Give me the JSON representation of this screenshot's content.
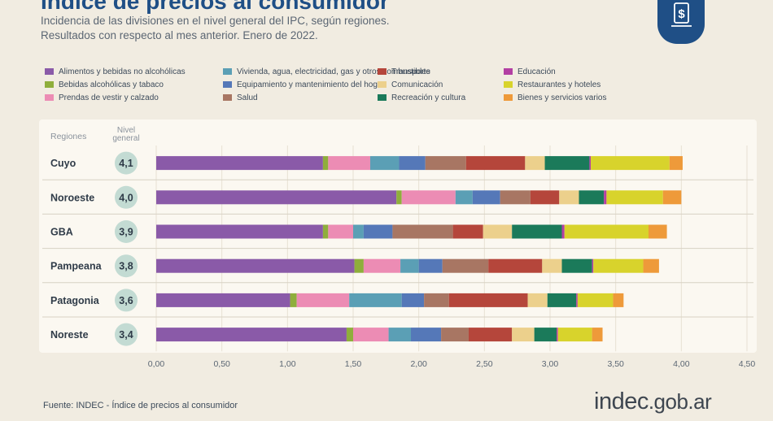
{
  "header": {
    "title": "Índice de precios al consumidor",
    "subtitle_line1": "Incidencia de las divisiones en el nivel general del IPC, según regiones.",
    "subtitle_line2": "Resultados con respecto al mes anterior. Enero de 2022.",
    "logo_icon": "dollar-document-icon"
  },
  "footer": {
    "source": "Fuente: INDEC - Índice de precios al consumidor",
    "brand_main": "indec",
    "brand_suffix": ".gob.ar"
  },
  "chart_data": {
    "type": "bar",
    "orientation": "horizontal",
    "stacked": true,
    "title": "Índice de precios al consumidor",
    "row_header_label": "Regiones",
    "total_header_label": "Nivel general",
    "categories": [
      "Cuyo",
      "Noroeste",
      "GBA",
      "Pampeana",
      "Patagonia",
      "Noreste"
    ],
    "totals": [
      "4,1",
      "4,0",
      "3,9",
      "3,8",
      "3,6",
      "3,4"
    ],
    "xlim": [
      0,
      4.5
    ],
    "xticks": [
      0,
      0.5,
      1.0,
      1.5,
      2.0,
      2.5,
      3.0,
      3.5,
      4.0,
      4.5
    ],
    "xtick_labels": [
      "0,00",
      "0,50",
      "1,00",
      "1,50",
      "2,00",
      "2,50",
      "3,00",
      "3,50",
      "4,00",
      "4,50"
    ],
    "legend_position": "top",
    "series": [
      {
        "name": "Alimentos y bebidas no alcohólicas",
        "color": "#8a5aa8",
        "values": [
          1.27,
          1.83,
          1.27,
          1.51,
          1.02,
          1.45
        ]
      },
      {
        "name": "Bebidas alcohólicas y tabaco",
        "color": "#8fae3c",
        "values": [
          0.04,
          0.04,
          0.04,
          0.07,
          0.05,
          0.05
        ]
      },
      {
        "name": "Prendas de vestir y calzado",
        "color": "#ec8cb4",
        "values": [
          0.32,
          0.41,
          0.19,
          0.28,
          0.4,
          0.27
        ]
      },
      {
        "name": "Vivienda, agua, electricidad, gas y otros combustibles",
        "color": "#5b9fb5",
        "values": [
          0.22,
          0.13,
          0.08,
          0.14,
          0.4,
          0.17
        ]
      },
      {
        "name": "Equipamiento y mantenimiento del hogar",
        "color": "#5578b8",
        "values": [
          0.2,
          0.21,
          0.22,
          0.18,
          0.17,
          0.23
        ]
      },
      {
        "name": "Salud",
        "color": "#a87663",
        "values": [
          0.31,
          0.23,
          0.46,
          0.35,
          0.19,
          0.21
        ]
      },
      {
        "name": "Transporte",
        "color": "#b5463b",
        "values": [
          0.45,
          0.22,
          0.23,
          0.41,
          0.6,
          0.33
        ]
      },
      {
        "name": "Comunicación",
        "color": "#ecd08c",
        "values": [
          0.15,
          0.15,
          0.22,
          0.15,
          0.15,
          0.17
        ]
      },
      {
        "name": "Recreación y cultura",
        "color": "#1b7a5a",
        "values": [
          0.34,
          0.19,
          0.38,
          0.23,
          0.22,
          0.17
        ]
      },
      {
        "name": "Educación",
        "color": "#b33fa3",
        "values": [
          0.01,
          0.02,
          0.02,
          0.01,
          0.01,
          0.01
        ]
      },
      {
        "name": "Restaurantes y hoteles",
        "color": "#d8d32c",
        "values": [
          0.6,
          0.43,
          0.64,
          0.38,
          0.27,
          0.26
        ]
      },
      {
        "name": "Bienes y servicios varios",
        "color": "#ee9a3a",
        "values": [
          0.1,
          0.14,
          0.14,
          0.12,
          0.08,
          0.08
        ]
      }
    ]
  }
}
